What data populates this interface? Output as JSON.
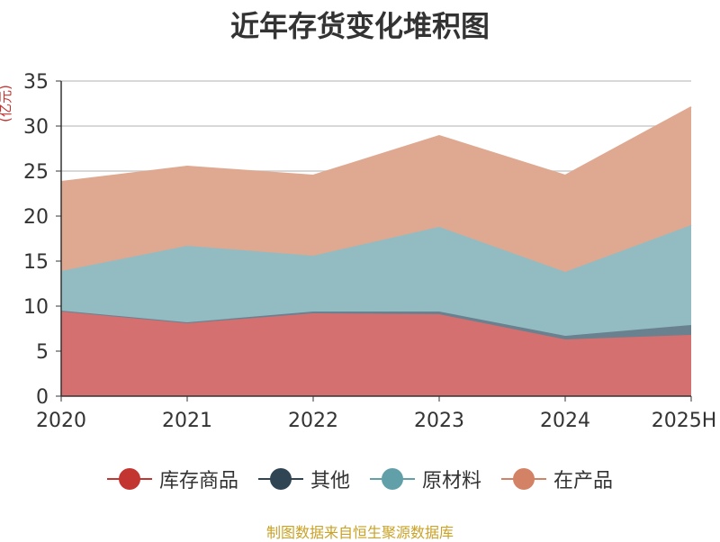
{
  "chart_data": {
    "type": "area",
    "stacked": true,
    "title": "近年存货变化堆积图",
    "ylabel": "(亿元)",
    "xlabel": "",
    "categories": [
      "2020",
      "2021",
      "2022",
      "2023",
      "2024",
      "2025H"
    ],
    "ylim": [
      0,
      35
    ],
    "yticks": [
      "0",
      "5",
      "10",
      "15",
      "20",
      "25",
      "30",
      "35"
    ],
    "grid": true,
    "legend_position": "bottom",
    "series": [
      {
        "name": "库存商品",
        "color": "#c23531",
        "area_color": "#d47070",
        "values": [
          9.5,
          8.1,
          9.2,
          9.1,
          6.3,
          6.8
        ]
      },
      {
        "name": "其他",
        "color": "#2f4554",
        "area_color": "#6a8190",
        "values": [
          0.0,
          0.1,
          0.2,
          0.3,
          0.4,
          1.1
        ]
      },
      {
        "name": "原材料",
        "color": "#61a0a8",
        "area_color": "#93bcc2",
        "values": [
          4.4,
          8.5,
          6.2,
          9.4,
          7.1,
          11.1
        ]
      },
      {
        "name": "在产品",
        "color": "#d48265",
        "area_color": "#dfa890",
        "values": [
          9.9,
          8.8,
          8.9,
          10.1,
          10.7,
          13.1
        ]
      }
    ]
  },
  "source_note": "制图数据来自恒生聚源数据库"
}
